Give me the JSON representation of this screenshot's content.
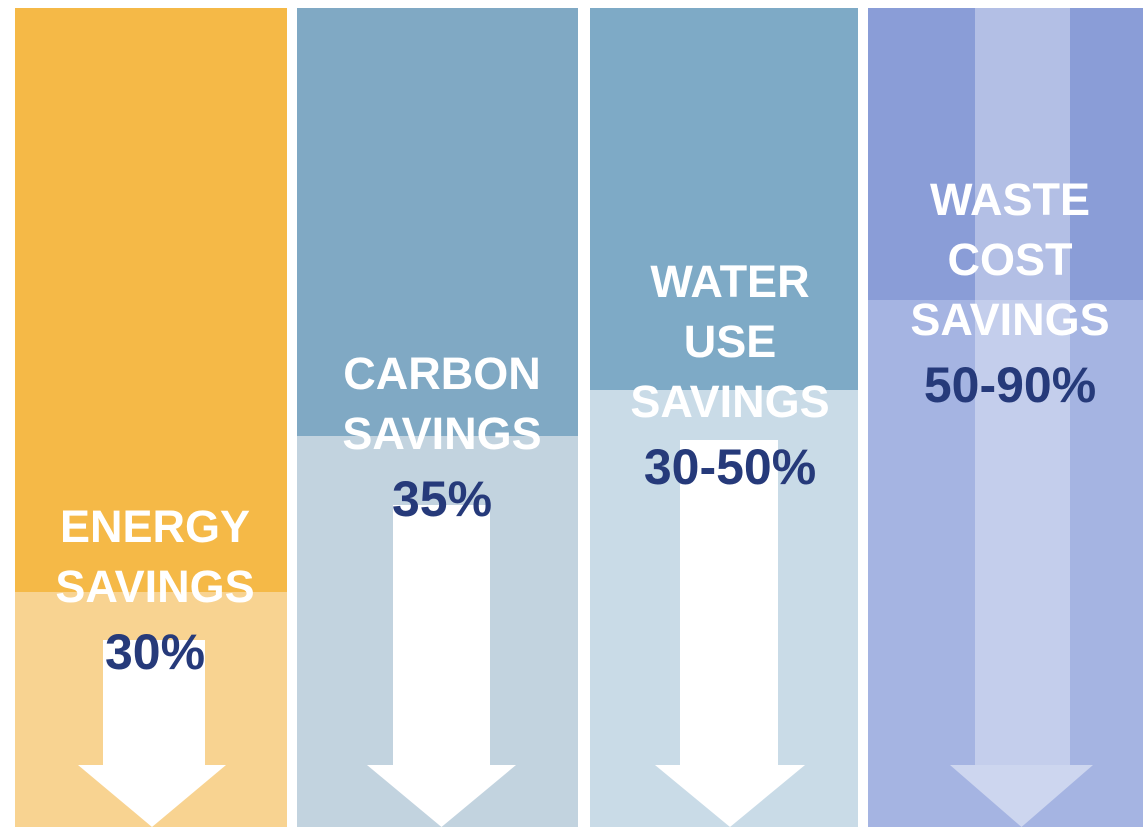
{
  "panels": [
    {
      "title_lines": [
        "ENERGY",
        "SAVINGS"
      ],
      "value": "30%"
    },
    {
      "title_lines": [
        "CARBON",
        "SAVINGS"
      ],
      "value": "35%"
    },
    {
      "title_lines": [
        "WATER",
        "USE",
        "SAVINGS"
      ],
      "value": "30-50%"
    },
    {
      "title_lines": [
        "WASTE",
        "COST",
        "SAVINGS"
      ],
      "value": "50-90%"
    }
  ]
}
